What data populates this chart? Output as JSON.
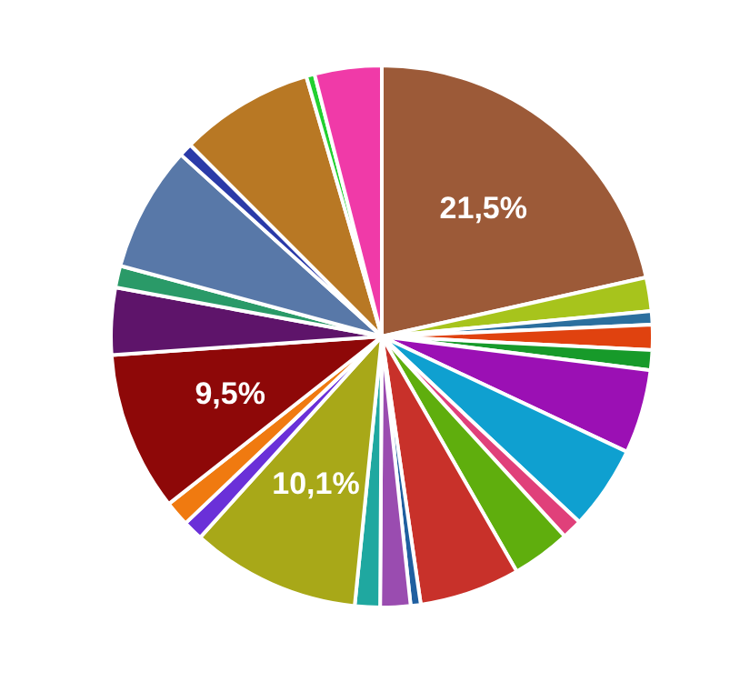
{
  "chart_data": {
    "type": "pie",
    "categories": [
      null,
      null,
      null,
      null,
      null,
      null,
      null,
      null,
      null,
      null,
      null,
      null,
      null,
      null,
      null,
      null,
      null,
      null,
      null,
      null,
      null,
      null,
      null,
      null
    ],
    "values": [
      21.5,
      2,
      0.8,
      1.5,
      1.2,
      5,
      5,
      1.2,
      3.5,
      6,
      0.6,
      1.8,
      1.5,
      10.1,
      1.2,
      1.5,
      9.5,
      4,
      1.3,
      7.5,
      0.8,
      8,
      0.5,
      4
    ],
    "value_labels": [
      "21,5%",
      null,
      null,
      null,
      null,
      null,
      null,
      null,
      null,
      null,
      null,
      null,
      null,
      "10,1%",
      null,
      null,
      "9,5%",
      null,
      null,
      null,
      null,
      null,
      null,
      null
    ],
    "colors": [
      "#9c5a38",
      "#a7c41c",
      "#2b6f9e",
      "#e0420f",
      "#179a2a",
      "#9b10b4",
      "#0fa0d0",
      "#e0407a",
      "#5fae0d",
      "#c8312a",
      "#1f5fa0",
      "#9a4cb0",
      "#1fa8a0",
      "#a8a818",
      "#6a30d8",
      "#f07a10",
      "#8e0808",
      "#5e146a",
      "#2a9a68",
      "#5878a8",
      "#2a3aa8",
      "#b87824",
      "#22d030",
      "#f03aa8"
    ],
    "legend": false
  }
}
